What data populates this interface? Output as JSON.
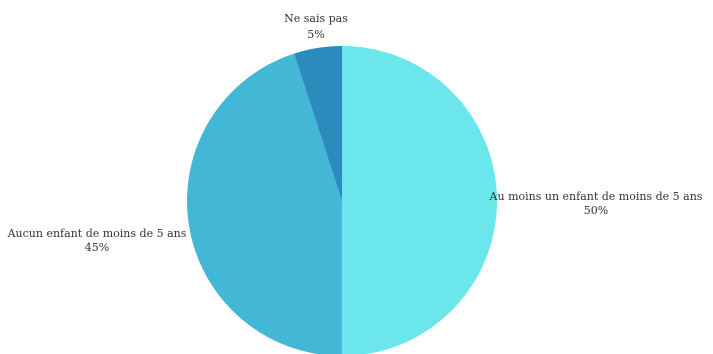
{
  "chart_data": {
    "type": "pie",
    "title": "",
    "slices": [
      {
        "label": "Au moins un enfant de moins de 5 ans",
        "value": 50,
        "value_label": "50%",
        "color": "#6be6ea"
      },
      {
        "label": "Aucun enfant de moins de 5 ans",
        "value": 45,
        "value_label": "45%",
        "color": "#42b8d6"
      },
      {
        "label": "Ne sais pas",
        "value": 5,
        "value_label": "5%",
        "color": "#2b8bbd"
      }
    ],
    "legend": "none",
    "label_style": "outside"
  }
}
